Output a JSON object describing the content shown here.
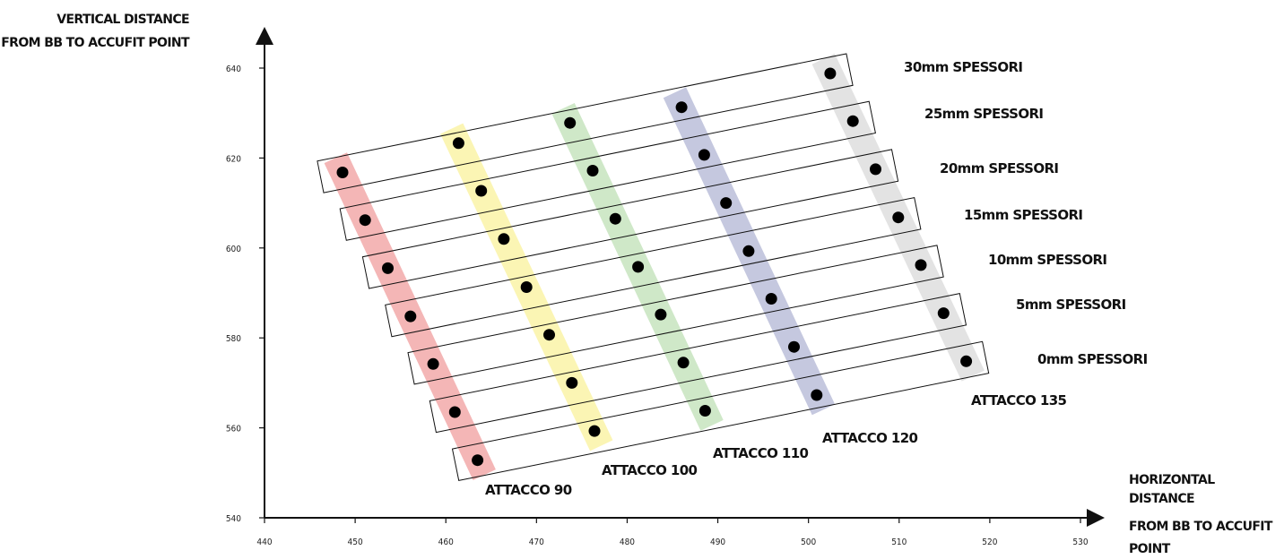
{
  "chart_data": {
    "type": "scatter",
    "xlabel": [
      "HORIZONTAL",
      "DISTANCE",
      "FROM BB TO ACCUFIT",
      "POINT"
    ],
    "ylabel": [
      "VERTICAL DISTANCE",
      "FROM BB TO ACCUFIT POINT"
    ],
    "xlim": [
      440,
      530
    ],
    "ylim": [
      540,
      640
    ],
    "xticks": [
      440,
      450,
      460,
      470,
      480,
      490,
      500,
      510,
      520,
      530
    ],
    "yticks": [
      540,
      560,
      580,
      600,
      620,
      640
    ],
    "grid": false,
    "columns": [
      {
        "label": "ATTACCO 90",
        "color": "#f4b6b6"
      },
      {
        "label": "ATTACCO 100",
        "color": "#fbf5b4"
      },
      {
        "label": "ATTACCO 110",
        "color": "#cfe8c8"
      },
      {
        "label": "ATTACCO 120",
        "color": "#c5c8df"
      },
      {
        "label": "ATTACCO 135",
        "color": "#e3e3e3"
      }
    ],
    "rows": [
      "30mm SPESSORI",
      "25mm SPESSORI",
      "20mm SPESSORI",
      "15mm SPESSORI",
      "10mm SPESSORI",
      "5mm SPESSORI",
      "0mm SPESSORI"
    ],
    "series": [
      {
        "name": "ATTACCO 90",
        "x": [
          448.6,
          451.1,
          453.6,
          456.1,
          458.6,
          461.0,
          463.5
        ],
        "y": [
          616.8,
          606.2,
          595.5,
          584.8,
          574.2,
          563.5,
          552.8
        ]
      },
      {
        "name": "ATTACCO 100",
        "x": [
          461.4,
          463.9,
          466.4,
          468.9,
          471.4,
          473.9,
          476.4
        ],
        "y": [
          623.3,
          612.7,
          602.0,
          591.3,
          580.7,
          570.0,
          559.3
        ]
      },
      {
        "name": "ATTACCO 110",
        "x": [
          473.7,
          476.2,
          478.7,
          481.2,
          483.7,
          486.2,
          488.6
        ],
        "y": [
          627.8,
          617.2,
          606.5,
          595.8,
          585.2,
          574.5,
          563.8
        ]
      },
      {
        "name": "ATTACCO 120",
        "x": [
          486.0,
          488.5,
          490.9,
          493.4,
          495.9,
          498.4,
          500.9
        ],
        "y": [
          631.3,
          620.7,
          610.0,
          599.3,
          588.7,
          578.0,
          567.3
        ]
      },
      {
        "name": "ATTACCO 135",
        "x": [
          502.4,
          504.9,
          507.4,
          509.9,
          512.4,
          514.9,
          517.4
        ],
        "y": [
          638.8,
          628.2,
          617.5,
          606.8,
          596.2,
          585.5,
          574.8
        ]
      }
    ]
  }
}
